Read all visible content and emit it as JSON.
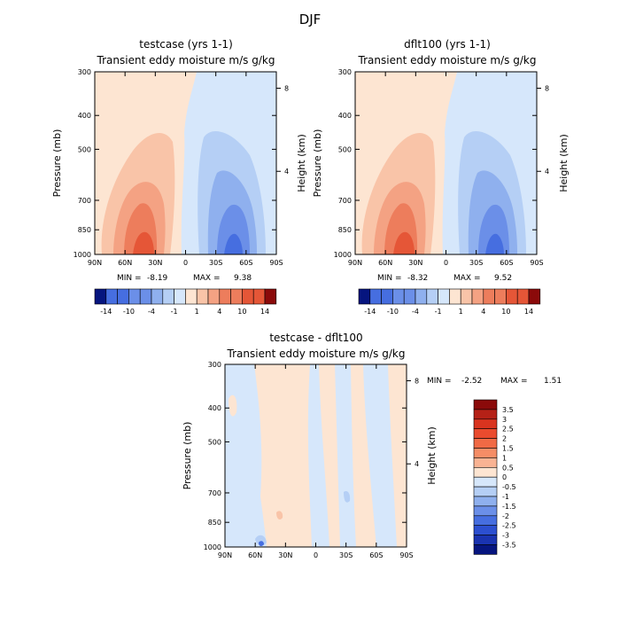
{
  "figure_title": "DJF",
  "chart_data": [
    {
      "type": "contour",
      "id": "testcase",
      "title": "testcase (yrs 1-1)",
      "subtitle": "Transient eddy moisture m/s g/kg",
      "xlabel": "",
      "ylabel": "Pressure (mb)",
      "ylabel_right": "Height (km)",
      "x_ticks": [
        "90N",
        "60N",
        "30N",
        "0",
        "30S",
        "60S",
        "90S"
      ],
      "y_ticks": [
        "300",
        "400",
        "500",
        "700",
        "850",
        "1000"
      ],
      "y_ticks_right": [
        "8",
        "4"
      ],
      "min_label": "MIN =",
      "min": "-8.19",
      "max_label": "MAX =",
      "max": "9.38",
      "levels": [
        "-14",
        "-10",
        "-4",
        "-1",
        "1",
        "4",
        "10",
        "14"
      ]
    },
    {
      "type": "contour",
      "id": "dflt100",
      "title": "dflt100 (yrs 1-1)",
      "subtitle": "Transient eddy moisture m/s g/kg",
      "xlabel": "",
      "ylabel": "Pressure (mb)",
      "ylabel_right": "Height (km)",
      "x_ticks": [
        "90N",
        "60N",
        "30N",
        "0",
        "30S",
        "60S",
        "90S"
      ],
      "y_ticks": [
        "300",
        "400",
        "500",
        "700",
        "850",
        "1000"
      ],
      "y_ticks_right": [
        "8",
        "4"
      ],
      "min_label": "MIN =",
      "min": "-8.32",
      "max_label": "MAX =",
      "max": "9.52",
      "levels": [
        "-14",
        "-10",
        "-4",
        "-1",
        "1",
        "4",
        "10",
        "14"
      ]
    },
    {
      "type": "contour",
      "id": "difference",
      "title": "testcase - dflt100",
      "subtitle": "Transient eddy moisture m/s g/kg",
      "xlabel": "",
      "ylabel": "Pressure (mb)",
      "ylabel_right": "Height (km)",
      "x_ticks": [
        "90N",
        "60N",
        "30N",
        "0",
        "30S",
        "60S",
        "90S"
      ],
      "y_ticks": [
        "300",
        "400",
        "500",
        "700",
        "850",
        "1000"
      ],
      "y_ticks_right": [
        "8",
        "4"
      ],
      "min_label": "MIN =",
      "min": "-2.52",
      "max_label": "MAX =",
      "max": "1.51",
      "levels": [
        "3.5",
        "3",
        "2.5",
        "2",
        "1.5",
        "1",
        "0.5",
        "0",
        "-0.5",
        "-1",
        "-1.5",
        "-2",
        "-2.5",
        "-3",
        "-3.5"
      ]
    }
  ],
  "colors": {
    "pos1": "#fde5d2",
    "pos2": "#f9c4a8",
    "pos3": "#f4a283",
    "pos4": "#ed7d5c",
    "pos5": "#e55637",
    "neg1": "#d6e7fb",
    "neg2": "#b5cff5",
    "neg3": "#8fb0ee",
    "neg4": "#6b8fe8",
    "neg5": "#466ee0",
    "cb_top": "#8b0a0a",
    "cb_bottom": "#06157f"
  }
}
